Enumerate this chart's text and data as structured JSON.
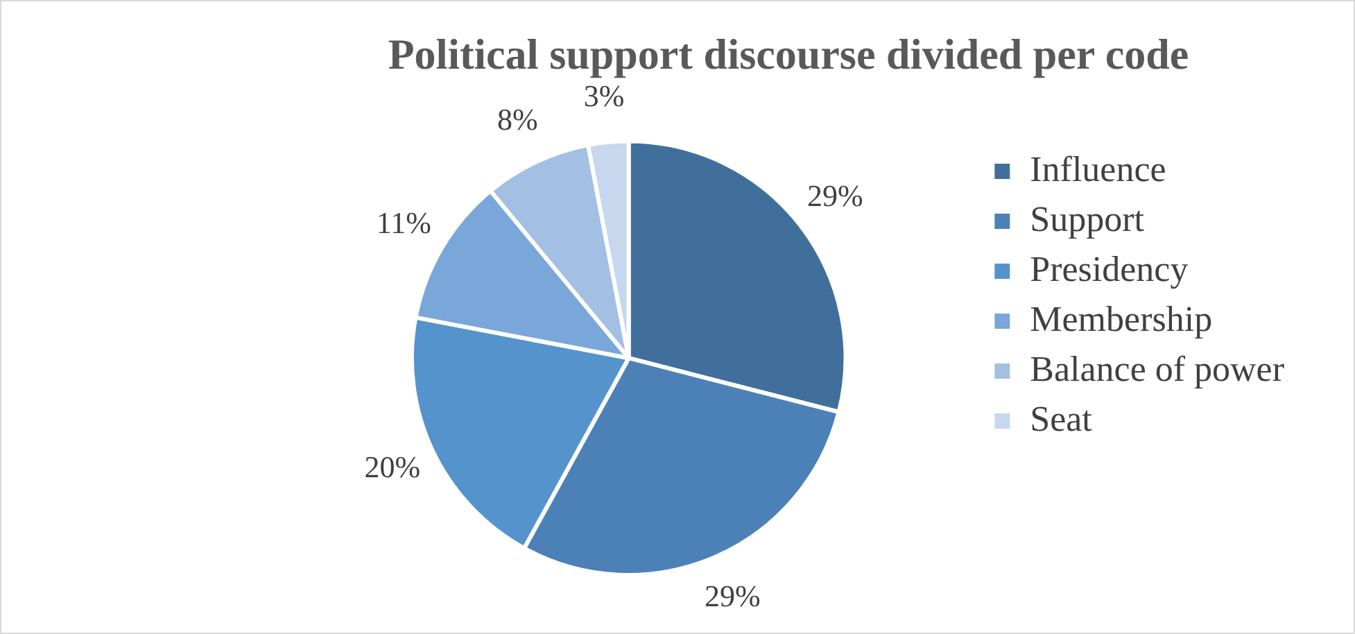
{
  "chart_data": {
    "type": "pie",
    "title": "Political support discourse divided per code",
    "categories": [
      "Influence",
      "Support",
      "Presidency",
      "Membership",
      "Balance of power",
      "Seat"
    ],
    "values": [
      29,
      29,
      20,
      11,
      8,
      3
    ],
    "value_labels": [
      "29%",
      "29%",
      "20%",
      "11%",
      "8%",
      "3%"
    ],
    "colors": [
      "#406f9c",
      "#4b81b6",
      "#5593cc",
      "#7aa7d9",
      "#a3bfe4",
      "#c7d7ee"
    ],
    "legend": "right"
  }
}
